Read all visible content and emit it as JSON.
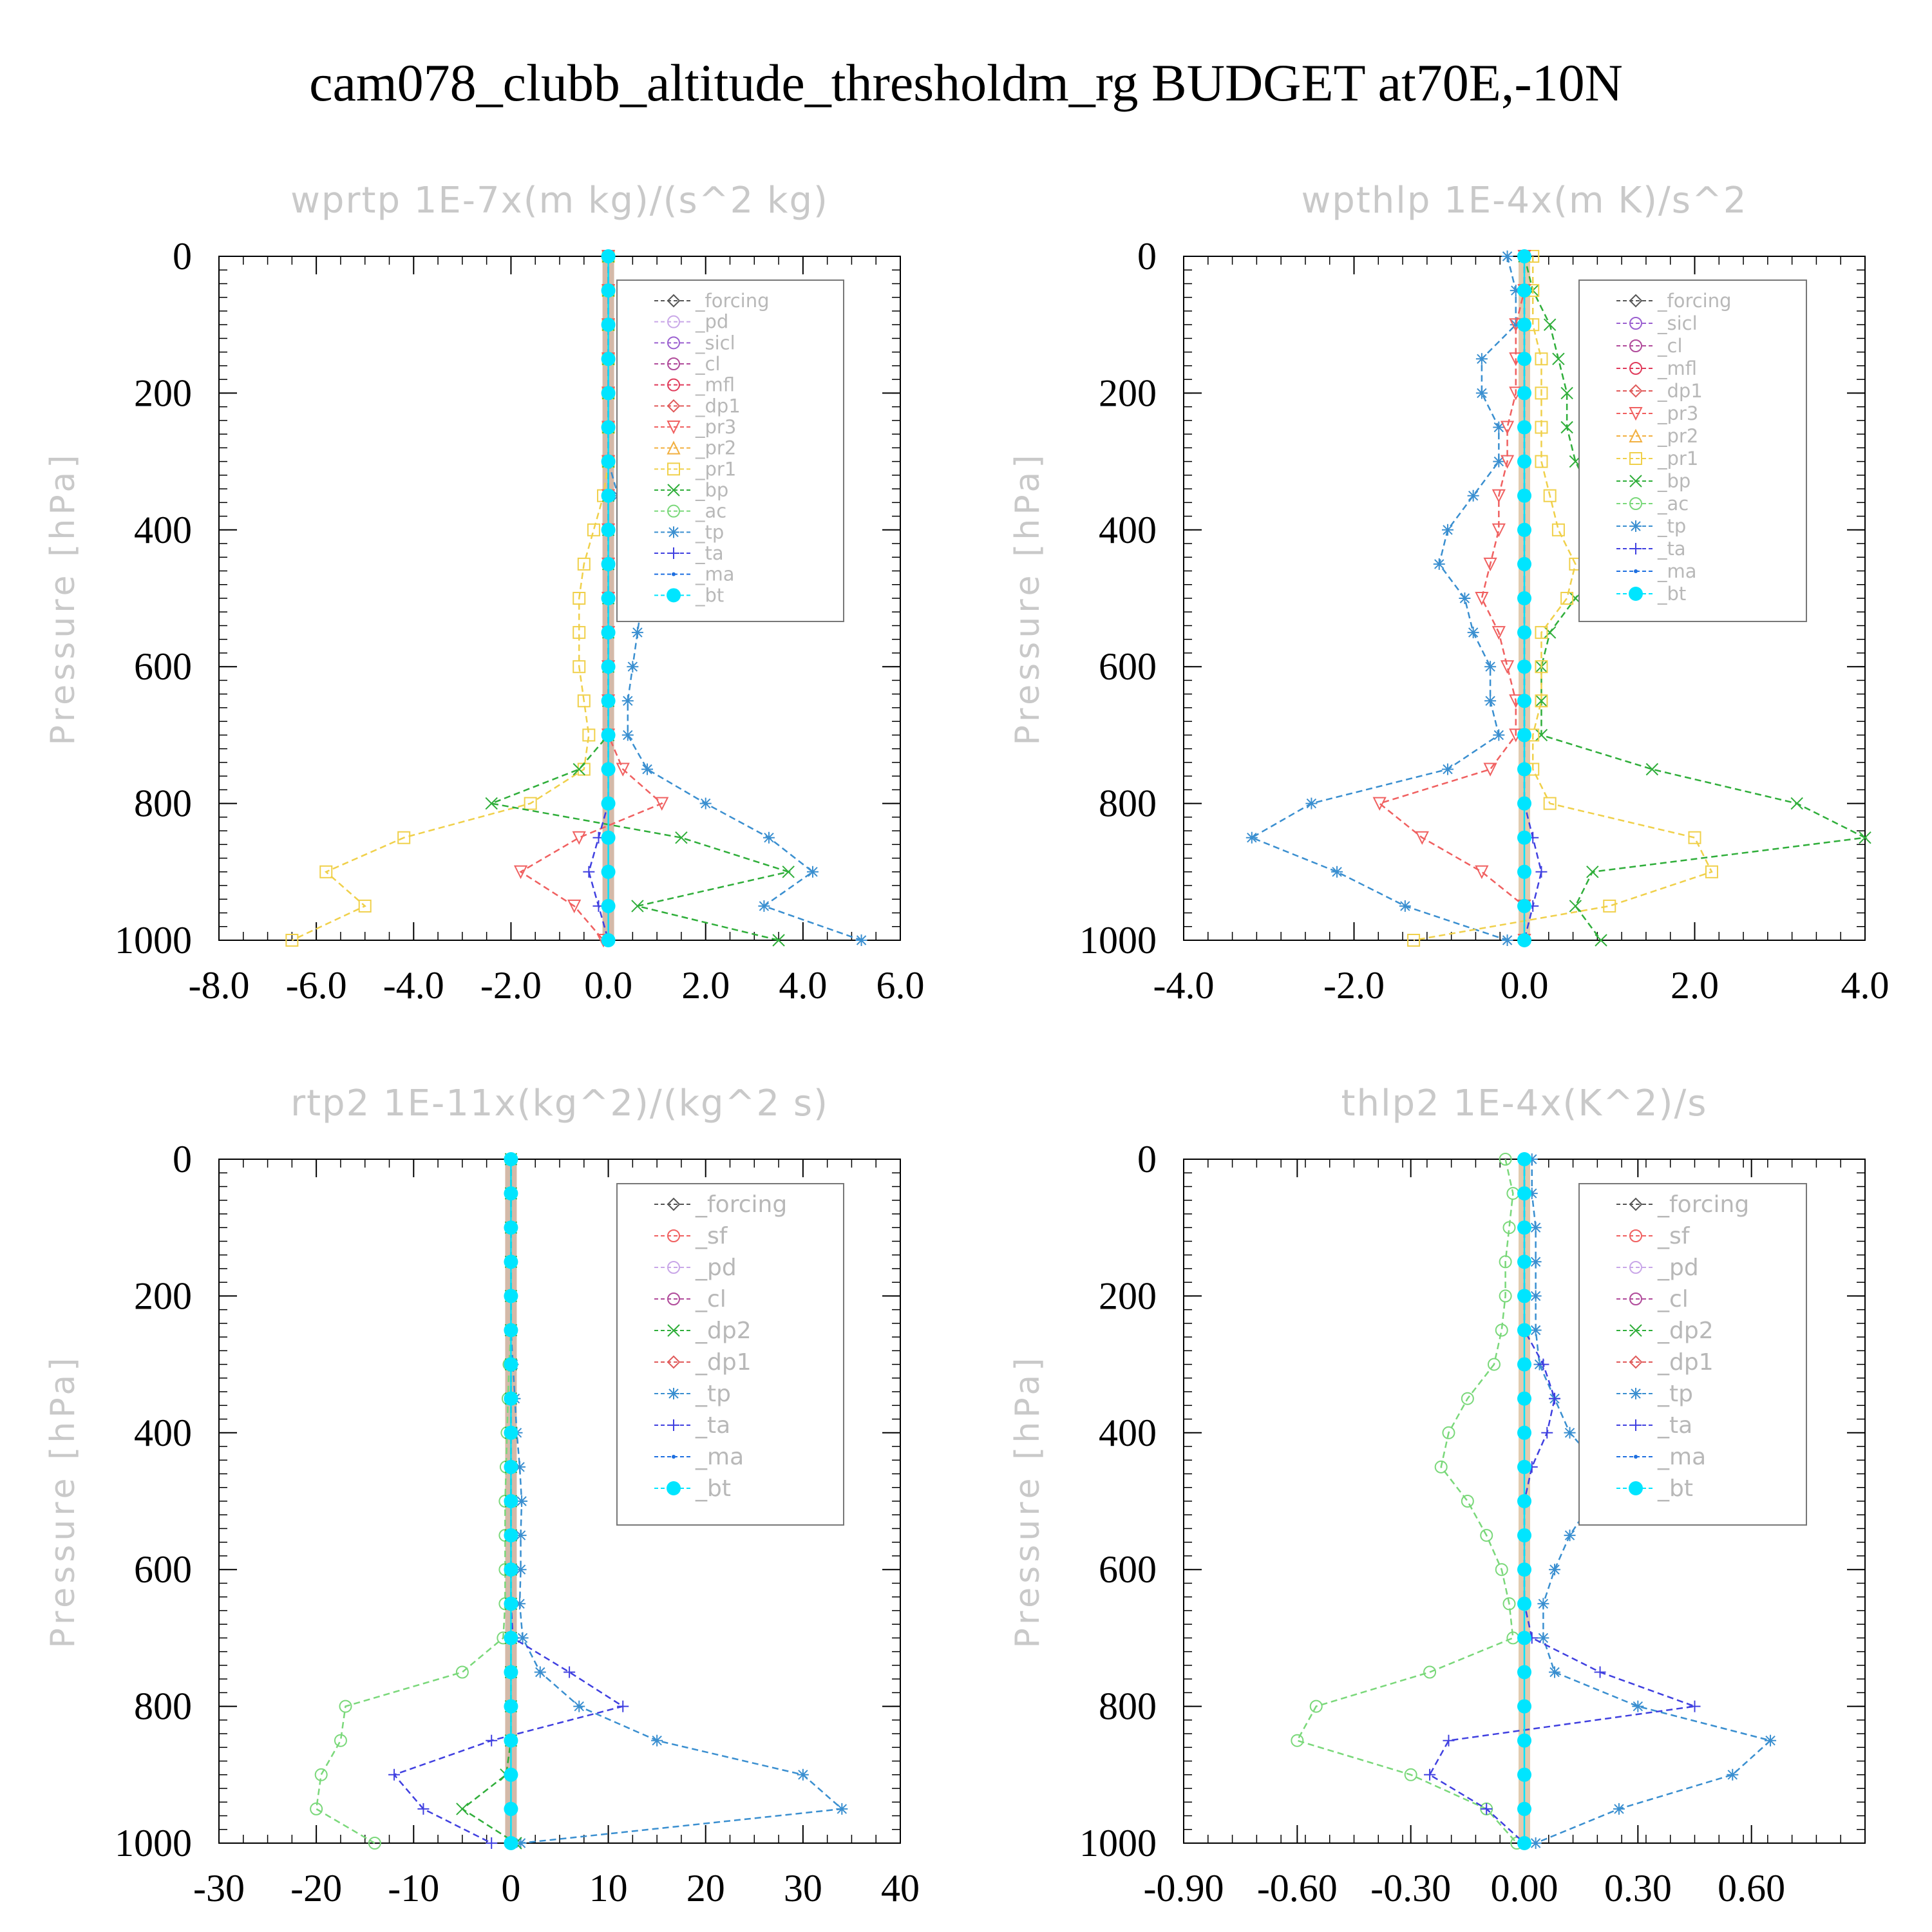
{
  "title": "cam078_clubb_altitude_thresholdm_rg  BUDGET at70E,-10N",
  "colors": {
    "forcing": "#555555",
    "pd": "#c9a7e8",
    "sicl": "#9a5fd0",
    "cl": "#b04a9a",
    "mfl": "#e03a5a",
    "dp1": "#e05a5a",
    "pr3": "#f06060",
    "pr2": "#f2b040",
    "pr1": "#f0d04a",
    "bp": "#2fae3a",
    "ac": "#7ad87a",
    "tp": "#3a8fd0",
    "ta": "#4040e0",
    "ma": "#1e6fe0",
    "bt": "#00e5ff",
    "sf": "#f06060",
    "dp2": "#2fae3a"
  },
  "chart_data": [
    {
      "type": "line",
      "title": "wprtp  1E-7x(m kg)/(s^2 kg)",
      "ylabel": "Pressure [hPa]",
      "xlim": [
        -8,
        6
      ],
      "ylim": [
        1000,
        0
      ],
      "xticks": [
        "-8.0",
        "-6.0",
        "-4.0",
        "-2.0",
        "0.0",
        "2.0",
        "4.0",
        "6.0"
      ],
      "yticks": [
        "0",
        "200",
        "400",
        "600",
        "800",
        "1000"
      ],
      "y": [
        0,
        50,
        100,
        150,
        200,
        250,
        300,
        350,
        400,
        450,
        500,
        550,
        600,
        650,
        700,
        750,
        800,
        850,
        900,
        950,
        1000
      ],
      "legend": [
        "_forcing",
        "_pd",
        "_sicl",
        "_cl",
        "_mfl",
        "_dp1",
        "_pr3",
        "_pr2",
        "_pr1",
        "_bp",
        "_ac",
        "_tp",
        "_ta",
        "_ma",
        "_bt"
      ],
      "series": [
        {
          "name": "_pr1",
          "key": "pr1",
          "values": [
            0,
            0,
            0,
            0,
            0,
            0,
            0,
            -0.1,
            -0.3,
            -0.5,
            -0.6,
            -0.6,
            -0.6,
            -0.5,
            -0.4,
            -0.5,
            -1.6,
            -4.2,
            -5.8,
            -5.0,
            -6.5
          ]
        },
        {
          "name": "_bp",
          "key": "bp",
          "values": [
            0,
            0,
            0,
            0,
            0,
            0,
            0,
            0,
            0,
            0,
            0,
            0,
            0,
            0,
            0,
            -0.6,
            -2.4,
            1.5,
            3.7,
            0.6,
            3.5
          ]
        },
        {
          "name": "_tp",
          "key": "tp",
          "values": [
            0,
            0,
            0,
            0,
            0,
            0,
            0,
            0.2,
            0.4,
            0.6,
            0.7,
            0.6,
            0.5,
            0.4,
            0.4,
            0.8,
            2.0,
            3.3,
            4.2,
            3.2,
            5.2
          ]
        },
        {
          "name": "_pr3",
          "key": "pr3",
          "values": [
            0,
            0,
            0,
            0,
            0,
            0,
            0,
            0,
            0,
            0,
            0,
            0,
            0,
            0,
            0,
            0.3,
            1.1,
            -0.6,
            -1.8,
            -0.7,
            -0.1
          ]
        },
        {
          "name": "_ta",
          "key": "ta",
          "values": [
            0,
            0,
            0,
            0,
            0,
            0,
            0,
            0,
            0,
            0,
            0,
            0,
            0,
            0,
            0,
            0,
            0,
            -0.2,
            -0.4,
            -0.2,
            0
          ]
        },
        {
          "name": "_bt",
          "key": "bt",
          "values": [
            0,
            0,
            0,
            0,
            0,
            0,
            0,
            0,
            0,
            0,
            0,
            0,
            0,
            0,
            0,
            0,
            0,
            0,
            0,
            0,
            0
          ]
        }
      ]
    },
    {
      "type": "line",
      "title": "wpthlp  1E-4x(m K)/s^2",
      "ylabel": "Pressure [hPa]",
      "xlim": [
        -4,
        4
      ],
      "ylim": [
        1000,
        0
      ],
      "xticks": [
        "-4.0",
        "-2.0",
        "0.0",
        "2.0",
        "4.0"
      ],
      "yticks": [
        "0",
        "200",
        "400",
        "600",
        "800",
        "1000"
      ],
      "y": [
        0,
        50,
        100,
        150,
        200,
        250,
        300,
        350,
        400,
        450,
        500,
        550,
        600,
        650,
        700,
        750,
        800,
        850,
        900,
        950,
        1000
      ],
      "legend": [
        "_forcing",
        "_sicl",
        "_cl",
        "_mfl",
        "_dp1",
        "_pr3",
        "_pr2",
        "_pr1",
        "_bp",
        "_ac",
        "_tp",
        "_ta",
        "_ma",
        "_bt"
      ],
      "series": [
        {
          "name": "_tp",
          "key": "tp",
          "values": [
            -0.2,
            -0.1,
            -0.1,
            -0.5,
            -0.5,
            -0.3,
            -0.3,
            -0.6,
            -0.9,
            -1.0,
            -0.7,
            -0.6,
            -0.4,
            -0.4,
            -0.3,
            -0.9,
            -2.5,
            -3.2,
            -2.2,
            -1.4,
            -0.2
          ]
        },
        {
          "name": "_bp",
          "key": "bp",
          "values": [
            0,
            0.1,
            0.3,
            0.4,
            0.5,
            0.5,
            0.6,
            0.8,
            0.9,
            0.9,
            0.6,
            0.3,
            0.2,
            0.2,
            0.2,
            1.5,
            3.2,
            4.0,
            0.8,
            0.6,
            0.9
          ]
        },
        {
          "name": "_pr1",
          "key": "pr1",
          "values": [
            0.1,
            0.1,
            0.1,
            0.2,
            0.2,
            0.2,
            0.2,
            0.3,
            0.4,
            0.6,
            0.5,
            0.2,
            0.2,
            0.2,
            0.1,
            0.1,
            0.3,
            2.0,
            2.2,
            1.0,
            -1.3
          ]
        },
        {
          "name": "_pr3",
          "key": "pr3",
          "values": [
            0,
            0,
            -0.1,
            -0.1,
            -0.1,
            -0.2,
            -0.2,
            -0.3,
            -0.3,
            -0.4,
            -0.5,
            -0.3,
            -0.2,
            -0.1,
            -0.1,
            -0.4,
            -1.7,
            -1.2,
            -0.5,
            0,
            0
          ]
        },
        {
          "name": "_ta",
          "key": "ta",
          "values": [
            0,
            0,
            0,
            0,
            0,
            0,
            0,
            0,
            0,
            0,
            0,
            0,
            0,
            0,
            0,
            0,
            0,
            0.1,
            0.2,
            0.1,
            0
          ]
        },
        {
          "name": "_bt",
          "key": "bt",
          "values": [
            0,
            0,
            0,
            0,
            0,
            0,
            0,
            0,
            0,
            0,
            0,
            0,
            0,
            0,
            0,
            0,
            0,
            0,
            0,
            0,
            0
          ]
        }
      ]
    },
    {
      "type": "line",
      "title": "rtp2  1E-11x(kg^2)/(kg^2 s)",
      "ylabel": "Pressure [hPa]",
      "xlim": [
        -30,
        40
      ],
      "ylim": [
        1000,
        0
      ],
      "xticks": [
        "-30",
        "-20",
        "-10",
        "0",
        "10",
        "20",
        "30",
        "40"
      ],
      "yticks": [
        "0",
        "200",
        "400",
        "600",
        "800",
        "1000"
      ],
      "y": [
        0,
        50,
        100,
        150,
        200,
        250,
        300,
        350,
        400,
        450,
        500,
        550,
        600,
        650,
        700,
        750,
        800,
        850,
        900,
        950,
        1000
      ],
      "legend": [
        "_forcing",
        "_sf",
        "_pd",
        "_cl",
        "_dp2",
        "_dp1",
        "_tp",
        "_ta",
        "_ma",
        "_bt"
      ],
      "series": [
        {
          "name": "_dp1",
          "key": "ac",
          "values": [
            0,
            0,
            0,
            0,
            0,
            0,
            -0.2,
            -0.3,
            -0.4,
            -0.5,
            -0.6,
            -0.6,
            -0.6,
            -0.6,
            -0.8,
            -5.0,
            -17.0,
            -17.5,
            -19.5,
            -20.0,
            -14.0
          ]
        },
        {
          "name": "_tp",
          "key": "tp",
          "values": [
            0,
            0,
            0,
            0,
            0,
            0,
            0.2,
            0.4,
            0.6,
            0.9,
            1.1,
            1.0,
            1.0,
            0.9,
            1.2,
            3.0,
            7.0,
            15.0,
            30.0,
            34.0,
            1.0
          ]
        },
        {
          "name": "_ta",
          "key": "ta",
          "values": [
            0,
            0,
            0,
            0,
            0,
            0,
            0,
            0,
            0,
            0,
            0,
            0,
            0,
            0,
            0.2,
            6.0,
            11.5,
            -2.0,
            -12.0,
            -9.0,
            -2.0
          ]
        },
        {
          "name": "_dp2",
          "key": "bp",
          "values": [
            0,
            0,
            0,
            0,
            0,
            0,
            0,
            0,
            0,
            0,
            0,
            0,
            0,
            0,
            0,
            0,
            0,
            0,
            -0.5,
            -5.0,
            0.5
          ]
        },
        {
          "name": "_bt",
          "key": "bt",
          "values": [
            0,
            0,
            0,
            0,
            0,
            0,
            0,
            0,
            0,
            0,
            0,
            0,
            0,
            0,
            0,
            0,
            0,
            0,
            0,
            0,
            0
          ]
        }
      ]
    },
    {
      "type": "line",
      "title": "thlp2  1E-4x(K^2)/s",
      "ylabel": "Pressure [hPa]",
      "xlim": [
        -0.9,
        0.9
      ],
      "ylim": [
        1000,
        0
      ],
      "xticks": [
        "-0.90",
        "-0.60",
        "-0.30",
        "0.00",
        "0.30",
        "0.60"
      ],
      "yticks": [
        "0",
        "200",
        "400",
        "600",
        "800",
        "1000"
      ],
      "y": [
        0,
        50,
        100,
        150,
        200,
        250,
        300,
        350,
        400,
        450,
        500,
        550,
        600,
        650,
        700,
        750,
        800,
        850,
        900,
        950,
        1000
      ],
      "legend": [
        "_forcing",
        "_sf",
        "_pd",
        "_cl",
        "_dp2",
        "_dp1",
        "_tp",
        "_ta",
        "_ma",
        "_bt"
      ],
      "series": [
        {
          "name": "_dp1",
          "key": "ac",
          "values": [
            -0.05,
            -0.03,
            -0.04,
            -0.05,
            -0.05,
            -0.06,
            -0.08,
            -0.15,
            -0.2,
            -0.22,
            -0.15,
            -0.1,
            -0.06,
            -0.04,
            -0.03,
            -0.25,
            -0.55,
            -0.6,
            -0.3,
            -0.1,
            -0.02
          ]
        },
        {
          "name": "_tp",
          "key": "tp",
          "values": [
            0.02,
            0.02,
            0.03,
            0.03,
            0.03,
            0.03,
            0.04,
            0.08,
            0.12,
            0.2,
            0.18,
            0.12,
            0.08,
            0.05,
            0.05,
            0.08,
            0.3,
            0.65,
            0.55,
            0.25,
            0.03
          ]
        },
        {
          "name": "_ta",
          "key": "ta",
          "values": [
            0,
            0,
            0,
            0,
            0,
            0,
            0.05,
            0.08,
            0.06,
            0.02,
            0,
            0,
            0,
            0,
            0.02,
            0.2,
            0.45,
            -0.2,
            -0.25,
            -0.1,
            0
          ]
        },
        {
          "name": "_bt",
          "key": "bt",
          "values": [
            0,
            0,
            0,
            0,
            0,
            0,
            0,
            0,
            0,
            0,
            0,
            0,
            0,
            0,
            0,
            0,
            0,
            0,
            0,
            0,
            0
          ]
        }
      ]
    }
  ]
}
